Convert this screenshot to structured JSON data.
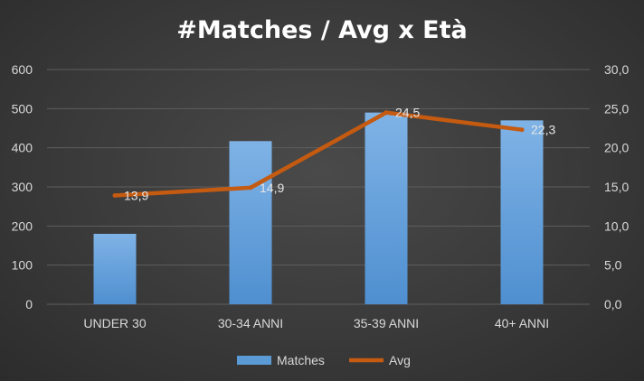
{
  "chart_data": {
    "type": "bar",
    "title": "#Matches / Avg x Età",
    "categories": [
      "UNDER 30",
      "30-34 ANNI",
      "35-39 ANNI",
      "40+ ANNI"
    ],
    "series": [
      {
        "name": "Matches",
        "type": "bar",
        "axis": "left",
        "values": [
          180,
          417,
          490,
          470
        ],
        "color": "#5b9bd5"
      },
      {
        "name": "Avg",
        "type": "line",
        "axis": "right",
        "values": [
          13.9,
          14.9,
          24.5,
          22.3
        ],
        "labels": [
          "13,9",
          "14,9",
          "24,5",
          "22,3"
        ],
        "color": "#c55a11"
      }
    ],
    "y_left": {
      "min": 0,
      "max": 600,
      "step": 100,
      "ticks": [
        "0",
        "100",
        "200",
        "300",
        "400",
        "500",
        "600"
      ]
    },
    "y_right": {
      "min": 0,
      "max": 30,
      "step": 5,
      "ticks": [
        "0,0",
        "5,0",
        "10,0",
        "15,0",
        "20,0",
        "25,0",
        "30,0"
      ]
    },
    "grid": true,
    "legend": "bottom",
    "colors": {
      "background": "#3a3a3a",
      "grid": "#5e5e5e",
      "text": "#d9d9d9"
    }
  }
}
